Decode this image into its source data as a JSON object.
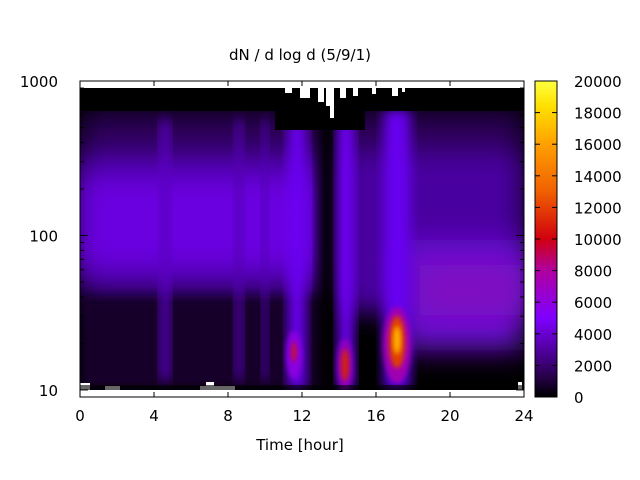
{
  "chart_data": {
    "type": "heatmap",
    "title": "dN / d log d (5/9/1)",
    "xlabel": "Time [hour]",
    "ylabel": "",
    "x_range": [
      0,
      24
    ],
    "y_range": [
      9,
      1000
    ],
    "y_scale": "log",
    "x_ticks": [
      "0",
      "4",
      "8",
      "12",
      "16",
      "20",
      "24"
    ],
    "y_ticks": [
      "10",
      "100",
      "1000"
    ],
    "colorbar": {
      "range": [
        0,
        20000
      ],
      "ticks": [
        "0",
        "2000",
        "4000",
        "6000",
        "8000",
        "10000",
        "12000",
        "14000",
        "16000",
        "18000",
        "20000"
      ],
      "palette": [
        "#000000",
        "#3a0070",
        "#7f00ff",
        "#b000a0",
        "#d00010",
        "#f06000",
        "#ffa000",
        "#ffe000",
        "#ffff40"
      ]
    },
    "grid": false,
    "features": [
      {
        "time": 11.6,
        "diameter": 17,
        "value": 9000
      },
      {
        "time": 14.3,
        "diameter": 14,
        "value": 10500
      },
      {
        "time": 17.2,
        "diameter": 20,
        "value": 15500
      },
      {
        "time": 3.0,
        "diameter": 110,
        "value": 5000
      },
      {
        "time": 20.5,
        "diameter": 45,
        "value": 6500
      }
    ]
  }
}
